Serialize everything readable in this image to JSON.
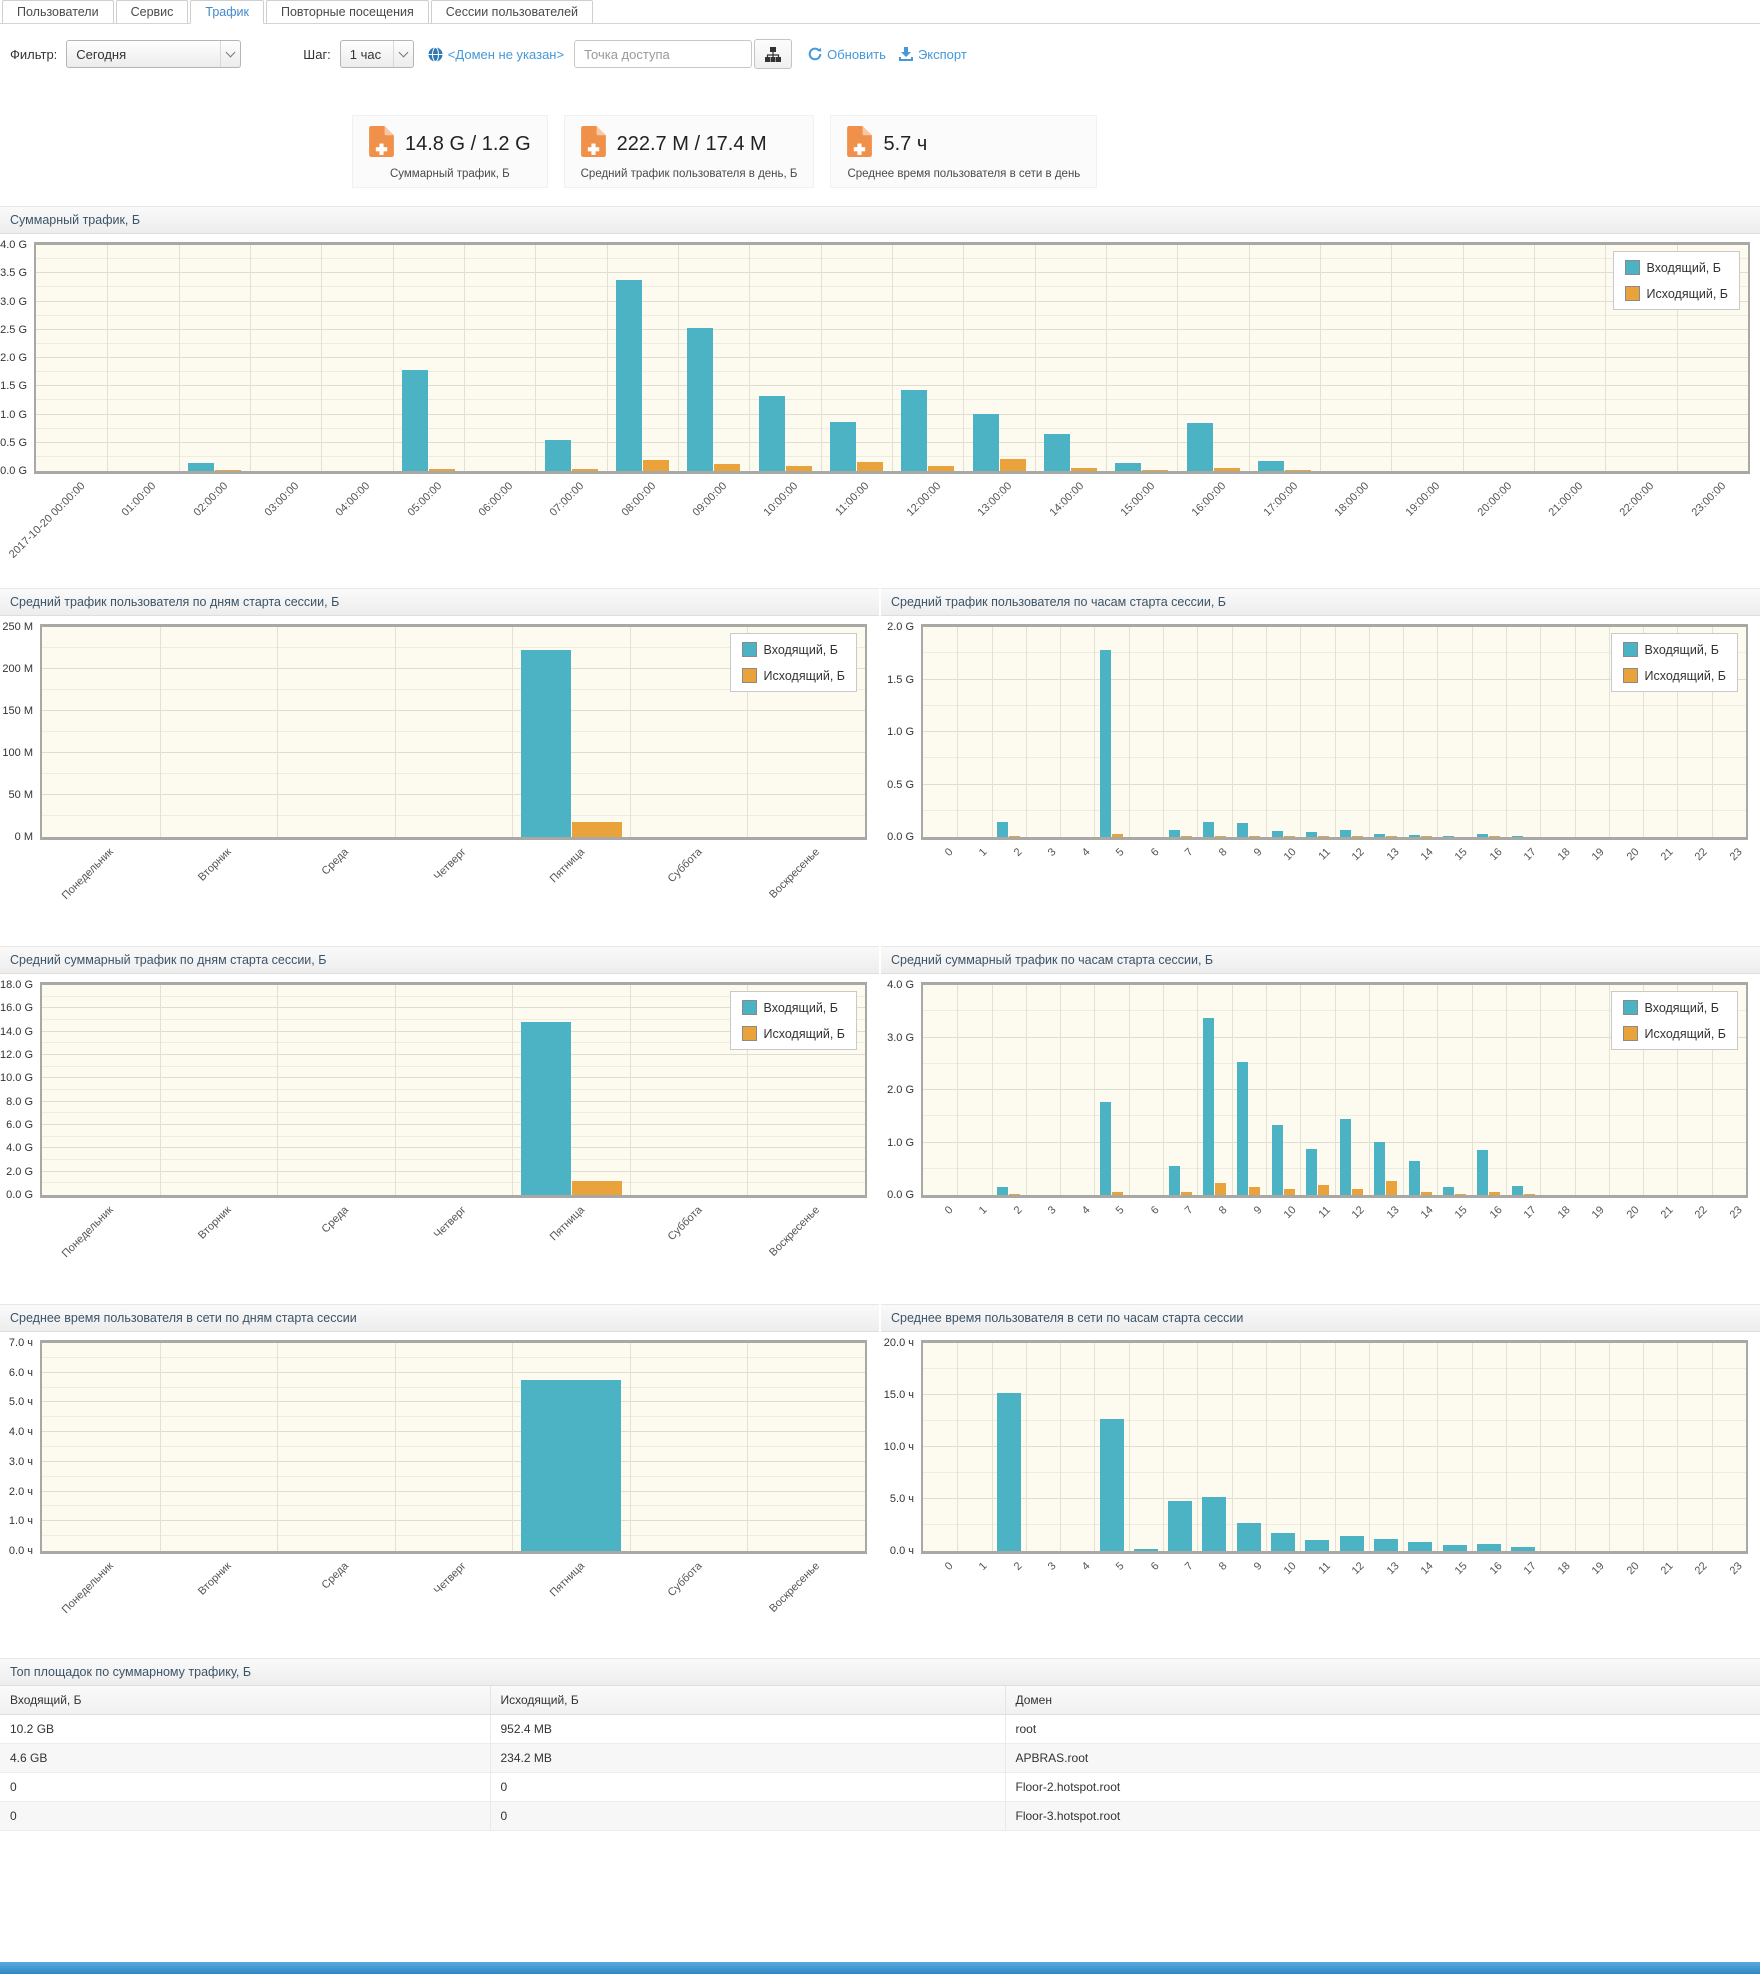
{
  "tabs": [
    {
      "label": "Пользователи"
    },
    {
      "label": "Сервис"
    },
    {
      "label": "Трафик"
    },
    {
      "label": "Повторные посещения"
    },
    {
      "label": "Сессии пользователей"
    }
  ],
  "filter_bar": {
    "filter_label": "Фильтр:",
    "filter_value": "Сегодня",
    "step_label": "Шаг:",
    "step_value": "1 час",
    "domain_link": "<Домен не указан>",
    "access_point_placeholder": "Точка доступа",
    "refresh_label": "Обновить",
    "export_label": "Экспорт"
  },
  "stats": [
    {
      "value": "14.8 G / 1.2 G",
      "label": "Суммарный трафик, Б"
    },
    {
      "value": "222.7 M / 17.4 M",
      "label": "Средний трафик пользователя в день, Б"
    },
    {
      "value": "5.7 ч",
      "label": "Среднее время пользователя в сети в день"
    }
  ],
  "colors": {
    "incoming": "#4bb3c3",
    "outgoing": "#e9a33a",
    "accent": "#428bca",
    "plot_bg": "#fdfbf0"
  },
  "chart_data": [
    {
      "type": "bar",
      "title": "Суммарный трафик, Б",
      "categories": [
        "2017-10-20 00:00:00",
        "01:00:00",
        "02:00:00",
        "03:00:00",
        "04:00:00",
        "05:00:00",
        "06:00:00",
        "07:00:00",
        "08:00:00",
        "09:00:00",
        "10:00:00",
        "11:00:00",
        "12:00:00",
        "13:00:00",
        "14:00:00",
        "15:00:00",
        "16:00:00",
        "17:00:00",
        "18:00:00",
        "19:00:00",
        "20:00:00",
        "21:00:00",
        "22:00:00",
        "23:00:00"
      ],
      "series": [
        {
          "name": "Входящий, Б",
          "values": [
            0,
            0,
            0.14,
            0,
            0,
            1.78,
            0,
            0.55,
            3.38,
            2.53,
            1.33,
            0.87,
            1.44,
            1.01,
            0.65,
            0.14,
            0.85,
            0.17,
            0,
            0,
            0,
            0,
            0,
            0
          ]
        },
        {
          "name": "Исходящий, Б",
          "values": [
            0,
            0,
            0.015,
            0,
            0,
            0.04,
            0,
            0.035,
            0.2,
            0.13,
            0.09,
            0.16,
            0.09,
            0.22,
            0.05,
            0.01,
            0.05,
            0.02,
            0,
            0,
            0,
            0,
            0,
            0
          ]
        }
      ],
      "ylim": [
        0,
        4
      ],
      "ytick_labels": [
        "0.0 G",
        "0.5 G",
        "1.0 G",
        "1.5 G",
        "2.0 G",
        "2.5 G",
        "3.0 G",
        "3.5 G",
        "4.0 G"
      ],
      "legend_position": "top-right",
      "grid": true
    },
    {
      "type": "bar",
      "title": "Средний трафик пользователя по дням старта сессии, Б",
      "categories": [
        "Понедельник",
        "Вторник",
        "Среда",
        "Четверг",
        "Пятница",
        "Суббота",
        "Воскресенье"
      ],
      "series": [
        {
          "name": "Входящий, Б",
          "values": [
            0,
            0,
            0,
            0,
            222.7,
            0,
            0
          ]
        },
        {
          "name": "Исходящий, Б",
          "values": [
            0,
            0,
            0,
            0,
            17.4,
            0,
            0
          ]
        }
      ],
      "ylim": [
        0,
        250
      ],
      "ytick_labels": [
        "0 M",
        "50 M",
        "100 M",
        "150 M",
        "200 M",
        "250 M"
      ],
      "legend_position": "top-right",
      "grid": true
    },
    {
      "type": "bar",
      "title": "Средний трафик пользователя по часам старта сессии, Б",
      "categories": [
        "0",
        "1",
        "2",
        "3",
        "4",
        "5",
        "6",
        "7",
        "8",
        "9",
        "10",
        "11",
        "12",
        "13",
        "14",
        "15",
        "16",
        "17",
        "18",
        "19",
        "20",
        "21",
        "22",
        "23"
      ],
      "series": [
        {
          "name": "Входящий, Б",
          "values": [
            0,
            0,
            0.14,
            0,
            0,
            1.78,
            0,
            0.07,
            0.14,
            0.13,
            0.06,
            0.05,
            0.065,
            0.03,
            0.02,
            0.005,
            0.03,
            0.007,
            0,
            0,
            0,
            0,
            0,
            0
          ]
        },
        {
          "name": "Исходящий, Б",
          "values": [
            0,
            0,
            0.004,
            0,
            0,
            0.03,
            0,
            0.008,
            0.012,
            0.008,
            0.006,
            0.012,
            0.007,
            0.007,
            0.004,
            0,
            0.004,
            0,
            0,
            0,
            0,
            0,
            0,
            0
          ]
        }
      ],
      "ylim": [
        0,
        2
      ],
      "ytick_labels": [
        "0.0 G",
        "0.5 G",
        "1.0 G",
        "1.5 G",
        "2.0 G"
      ],
      "legend_position": "top-right",
      "grid": true
    },
    {
      "type": "bar",
      "title": "Средний суммарный трафик по дням старта сессии, Б",
      "categories": [
        "Понедельник",
        "Вторник",
        "Среда",
        "Четверг",
        "Пятница",
        "Суббота",
        "Воскресенье"
      ],
      "series": [
        {
          "name": "Входящий, Б",
          "values": [
            0,
            0,
            0,
            0,
            14.8,
            0,
            0
          ]
        },
        {
          "name": "Исходящий, Б",
          "values": [
            0,
            0,
            0,
            0,
            1.2,
            0,
            0
          ]
        }
      ],
      "ylim": [
        0,
        18
      ],
      "ytick_labels": [
        "0.0 G",
        "2.0 G",
        "4.0 G",
        "6.0 G",
        "8.0 G",
        "10.0 G",
        "12.0 G",
        "14.0 G",
        "16.0 G",
        "18.0 G"
      ],
      "legend_position": "top-right",
      "grid": true
    },
    {
      "type": "bar",
      "title": "Средний суммарный трафик по часам старта сессии, Б",
      "categories": [
        "0",
        "1",
        "2",
        "3",
        "4",
        "5",
        "6",
        "7",
        "8",
        "9",
        "10",
        "11",
        "12",
        "13",
        "14",
        "15",
        "16",
        "17",
        "18",
        "19",
        "20",
        "21",
        "22",
        "23"
      ],
      "series": [
        {
          "name": "Входящий, Б",
          "values": [
            0,
            0,
            0.16,
            0,
            0,
            1.78,
            0,
            0.55,
            3.38,
            2.53,
            1.33,
            0.88,
            1.44,
            1.01,
            0.65,
            0.15,
            0.86,
            0.18,
            0,
            0,
            0,
            0,
            0,
            0
          ]
        },
        {
          "name": "Исходящий, Б",
          "values": [
            0,
            0,
            0.01,
            0,
            0,
            0.05,
            0,
            0.05,
            0.22,
            0.15,
            0.11,
            0.2,
            0.11,
            0.26,
            0.06,
            0.02,
            0.06,
            0.02,
            0,
            0,
            0,
            0,
            0,
            0
          ]
        }
      ],
      "ylim": [
        0,
        4
      ],
      "ytick_labels": [
        "0.0 G",
        "1.0 G",
        "2.0 G",
        "3.0 G",
        "4.0 G"
      ],
      "legend_position": "top-right",
      "grid": true
    },
    {
      "type": "bar",
      "title": "Среднее время пользователя в сети по дням старта сессии",
      "categories": [
        "Понедельник",
        "Вторник",
        "Среда",
        "Четверг",
        "Пятница",
        "Суббота",
        "Воскресенье"
      ],
      "series": [
        {
          "name": "Входящий, Б",
          "values": [
            0,
            0,
            0,
            0,
            5.75,
            0,
            0
          ]
        }
      ],
      "ylim": [
        0,
        7
      ],
      "ytick_labels": [
        "0.0 ч",
        "1.0 ч",
        "2.0 ч",
        "3.0 ч",
        "4.0 ч",
        "5.0 ч",
        "6.0 ч",
        "7.0 ч"
      ],
      "legend_position": "none",
      "grid": true
    },
    {
      "type": "bar",
      "title": "Среднее время пользователя в сети по часам старта сессии",
      "categories": [
        "0",
        "1",
        "2",
        "3",
        "4",
        "5",
        "6",
        "7",
        "8",
        "9",
        "10",
        "11",
        "12",
        "13",
        "14",
        "15",
        "16",
        "17",
        "18",
        "19",
        "20",
        "21",
        "22",
        "23"
      ],
      "series": [
        {
          "name": "Входящий, Б",
          "values": [
            0,
            0,
            15.2,
            0,
            0,
            12.7,
            0.2,
            4.8,
            5.2,
            2.7,
            1.7,
            1.1,
            1.45,
            1.2,
            0.9,
            0.55,
            0.65,
            0.35,
            0,
            0,
            0,
            0,
            0,
            0
          ]
        }
      ],
      "ylim": [
        0,
        20
      ],
      "ytick_labels": [
        "0.0 ч",
        "5.0 ч",
        "10.0 ч",
        "15.0 ч",
        "20.0 ч"
      ],
      "legend_position": "none",
      "grid": true
    }
  ],
  "table": {
    "title": "Топ площадок по суммарному трафику, Б",
    "columns": [
      "Входящий, Б",
      "Исходящий, Б",
      "Домен"
    ],
    "rows": [
      [
        "10.2 GB",
        "952.4 MB",
        "root"
      ],
      [
        "4.6 GB",
        "234.2 MB",
        "APBRAS.root"
      ],
      [
        "0",
        "0",
        "Floor-2.hotspot.root"
      ],
      [
        "0",
        "0",
        "Floor-3.hotspot.root"
      ]
    ]
  }
}
